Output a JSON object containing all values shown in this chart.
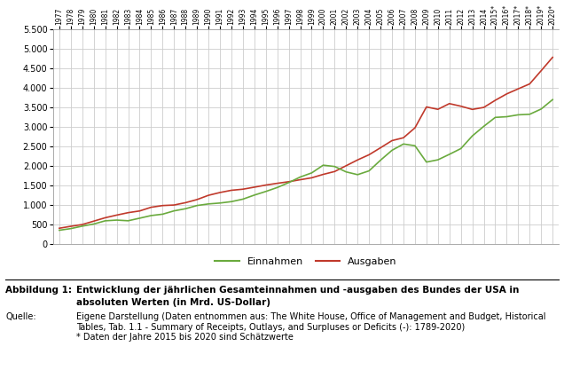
{
  "years": [
    1977,
    1978,
    1979,
    1980,
    1981,
    1982,
    1983,
    1984,
    1985,
    1986,
    1987,
    1988,
    1989,
    1990,
    1991,
    1992,
    1993,
    1994,
    1995,
    1996,
    1997,
    1998,
    1999,
    2000,
    2001,
    2002,
    2003,
    2004,
    2005,
    2006,
    2007,
    2008,
    2009,
    2010,
    2011,
    2012,
    2013,
    2014,
    2015,
    2016,
    2017,
    2018,
    2019,
    2020
  ],
  "einnahmen": [
    357.8,
    399.6,
    463.3,
    517.1,
    599.3,
    617.8,
    600.6,
    666.5,
    734.1,
    769.2,
    854.4,
    909.3,
    991.2,
    1032.0,
    1055.0,
    1091.3,
    1154.4,
    1258.6,
    1351.8,
    1453.1,
    1579.3,
    1721.8,
    1827.5,
    2025.2,
    1991.2,
    1853.2,
    1782.3,
    1880.1,
    2153.6,
    2406.9,
    2568.0,
    2524.0,
    2105.0,
    2162.7,
    2303.5,
    2450.0,
    2775.1,
    3021.5,
    3249.9,
    3267.5,
    3316.2,
    3329.9,
    3464.2,
    3706.0
  ],
  "ausgaben": [
    409.2,
    458.7,
    504.0,
    590.9,
    678.2,
    745.7,
    808.4,
    851.9,
    946.4,
    990.4,
    1004.0,
    1064.5,
    1143.7,
    1253.2,
    1324.4,
    1381.7,
    1409.5,
    1461.9,
    1515.8,
    1560.6,
    1601.3,
    1652.6,
    1702.0,
    1789.1,
    1863.0,
    2011.0,
    2160.1,
    2293.0,
    2472.2,
    2655.1,
    2728.7,
    2982.5,
    3517.7,
    3457.1,
    3603.1,
    3536.9,
    3454.6,
    3506.1,
    3688.3,
    3852.6,
    3981.6,
    4108.4,
    4446.6,
    4790.0
  ],
  "einnahmen_color": "#6aaa3e",
  "ausgaben_color": "#c0392b",
  "background_color": "#ffffff",
  "grid_color": "#cccccc",
  "ylim": [
    0,
    5500
  ],
  "yticks": [
    0,
    500,
    1000,
    1500,
    2000,
    2500,
    3000,
    3500,
    4000,
    4500,
    5000,
    5500
  ],
  "legend_einnahmen": "Einnahmen",
  "legend_ausgaben": "Ausgaben",
  "fig_label": "Abbildung 1:",
  "fig_title_line1": "Entwicklung der jährlichen Gesamteinnahmen und -ausgaben des Bundes der USA in",
  "fig_title_line2": "absoluten Werten (in Mrd. US-Dollar)",
  "quelle_label": "Quelle:",
  "quelle_text_line1": "Eigene Darstellung (Daten entnommen aus: The White House, Office of Management and Budget, Historical",
  "quelle_text_line2": "Tables, Tab. 1.1 - Summary of Receipts, Outlays, and Surpluses or Deficits (-): 1789-2020)",
  "quelle_text_line3": "* Daten der Jahre 2015 bis 2020 sind Schätzwerte",
  "star_years": [
    2015,
    2016,
    2017,
    2018,
    2019,
    2020
  ]
}
